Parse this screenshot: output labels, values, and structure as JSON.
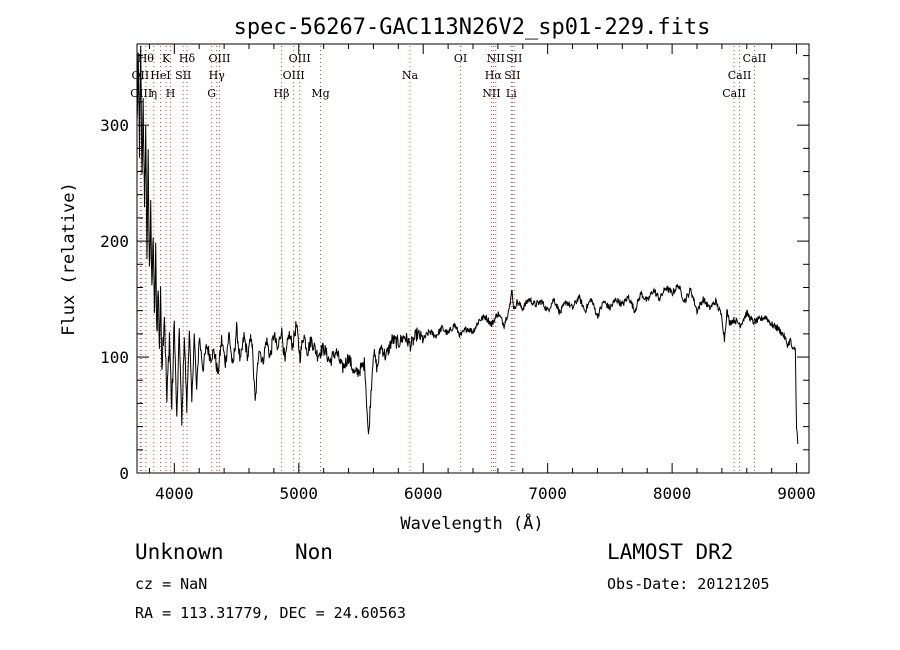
{
  "info": {
    "class_label": "Unknown",
    "subclass_label": "Non",
    "survey": "LAMOST DR2",
    "cz": "cz = NaN",
    "obs_date": "Obs-Date: 20121205",
    "radec": "RA = 113.31779, DEC =  24.60563"
  },
  "chart_data": {
    "type": "line",
    "title": "spec-56267-GAC113N26V2_sp01-229.fits",
    "xlabel": "Wavelength (Å)",
    "ylabel": "Flux (relative)",
    "xlim": [
      3700,
      9100
    ],
    "ylim": [
      0,
      370
    ],
    "xticks": [
      4000,
      5000,
      6000,
      7000,
      8000,
      9000
    ],
    "yticks": [
      0,
      100,
      200,
      300
    ],
    "grid": false,
    "line_color": "#000000",
    "marker_color": "#d04040",
    "series": [
      {
        "x": [
          3700,
          3710,
          3720,
          3730,
          3740,
          3750,
          3760,
          3770,
          3780,
          3790,
          3800,
          3810,
          3820,
          3830,
          3840,
          3850,
          3860,
          3870,
          3880,
          3890,
          3900,
          3920,
          3940,
          3960,
          3980,
          4000,
          4020,
          4040,
          4060,
          4080,
          4100,
          4120,
          4140,
          4160,
          4180,
          4200,
          4230,
          4260,
          4290,
          4320,
          4350,
          4380,
          4410,
          4440,
          4470,
          4500,
          4530,
          4560,
          4590,
          4620,
          4650,
          4680,
          4710,
          4740,
          4770,
          4800,
          4830,
          4860,
          4890,
          4920,
          4950,
          4980,
          5010,
          5040,
          5070,
          5100,
          5150,
          5200,
          5250,
          5300,
          5350,
          5400,
          5450,
          5500,
          5530,
          5560,
          5580,
          5600,
          5630,
          5660,
          5700,
          5750,
          5800,
          5850,
          5900,
          5950,
          6000,
          6050,
          6100,
          6150,
          6200,
          6250,
          6300,
          6350,
          6400,
          6450,
          6500,
          6550,
          6600,
          6650,
          6700,
          6710,
          6730,
          6750,
          6800,
          6850,
          6900,
          6950,
          7000,
          7050,
          7100,
          7150,
          7200,
          7250,
          7300,
          7350,
          7400,
          7450,
          7500,
          7550,
          7600,
          7650,
          7700,
          7750,
          7800,
          7850,
          7900,
          7950,
          8000,
          8050,
          8100,
          8150,
          8200,
          8250,
          8300,
          8350,
          8400,
          8420,
          8440,
          8460,
          8500,
          8550,
          8600,
          8650,
          8700,
          8750,
          8800,
          8850,
          8900,
          8930,
          8950,
          8970,
          8990,
          9000,
          9010
        ],
        "y": [
          300,
          350,
          280,
          360,
          250,
          330,
          220,
          300,
          190,
          270,
          170,
          240,
          150,
          210,
          130,
          190,
          120,
          160,
          110,
          150,
          95,
          140,
          60,
          120,
          55,
          130,
          45,
          125,
          40,
          120,
          55,
          125,
          60,
          120,
          70,
          118,
          90,
          110,
          100,
          105,
          85,
          115,
          95,
          120,
          90,
          125,
          95,
          118,
          100,
          120,
          60,
          110,
          95,
          115,
          100,
          120,
          105,
          125,
          95,
          120,
          110,
          128,
          100,
          120,
          105,
          115,
          102,
          108,
          96,
          105,
          90,
          100,
          85,
          90,
          95,
          30,
          70,
          105,
          90,
          110,
          100,
          115,
          112,
          118,
          110,
          120,
          115,
          122,
          118,
          125,
          120,
          128,
          118,
          125,
          122,
          132,
          135,
          128,
          138,
          128,
          145,
          160,
          140,
          148,
          142,
          150,
          145,
          148,
          140,
          150,
          138,
          148,
          142,
          152,
          140,
          150,
          135,
          148,
          142,
          150,
          145,
          152,
          140,
          155,
          148,
          158,
          150,
          160,
          155,
          162,
          148,
          158,
          140,
          150,
          142,
          148,
          135,
          115,
          140,
          130,
          132,
          128,
          138,
          130,
          132,
          135,
          128,
          125,
          118,
          110,
          115,
          105,
          108,
          40,
          25
        ]
      }
    ],
    "lines": [
      {
        "wl": 3727,
        "label": "OII",
        "row": 1
      },
      {
        "wl": 3734,
        "label": "OIII",
        "row": 2
      },
      {
        "wl": 3771,
        "label": "Hθ",
        "row": 0
      },
      {
        "wl": 3835,
        "label": "η",
        "row": 2
      },
      {
        "wl": 3889,
        "label": "HeI",
        "row": 1
      },
      {
        "wl": 3934,
        "label": "K",
        "row": 0
      },
      {
        "wl": 3970,
        "label": "H",
        "row": 2
      },
      {
        "wl": 4072,
        "label": "SII",
        "row": 1
      },
      {
        "wl": 4102,
        "label": "Hδ",
        "row": 0
      },
      {
        "wl": 4300,
        "label": "G",
        "row": 2
      },
      {
        "wl": 4341,
        "label": "Hγ",
        "row": 1
      },
      {
        "wl": 4363,
        "label": "OIII",
        "row": 0
      },
      {
        "wl": 4861,
        "label": "Hβ",
        "row": 2
      },
      {
        "wl": 4959,
        "label": "OIII",
        "row": 1
      },
      {
        "wl": 5007,
        "label": "OIII",
        "row": 0
      },
      {
        "wl": 5175,
        "label": "Mg",
        "row": 2
      },
      {
        "wl": 5894,
        "label": "Na",
        "row": 1
      },
      {
        "wl": 6300,
        "label": "OI",
        "row": 0
      },
      {
        "wl": 6548,
        "label": "NII",
        "row": 2
      },
      {
        "wl": 6563,
        "label": "Hα",
        "row": 1
      },
      {
        "wl": 6583,
        "label": "NII",
        "row": 0
      },
      {
        "wl": 6708,
        "label": "Li",
        "row": 2
      },
      {
        "wl": 6716,
        "label": "SII",
        "row": 1
      },
      {
        "wl": 6731,
        "label": "SII",
        "row": 0
      },
      {
        "wl": 8498,
        "label": "CaII",
        "row": 2
      },
      {
        "wl": 8542,
        "label": "CaII",
        "row": 1
      },
      {
        "wl": 8662,
        "label": "CaII",
        "row": 0
      }
    ]
  }
}
